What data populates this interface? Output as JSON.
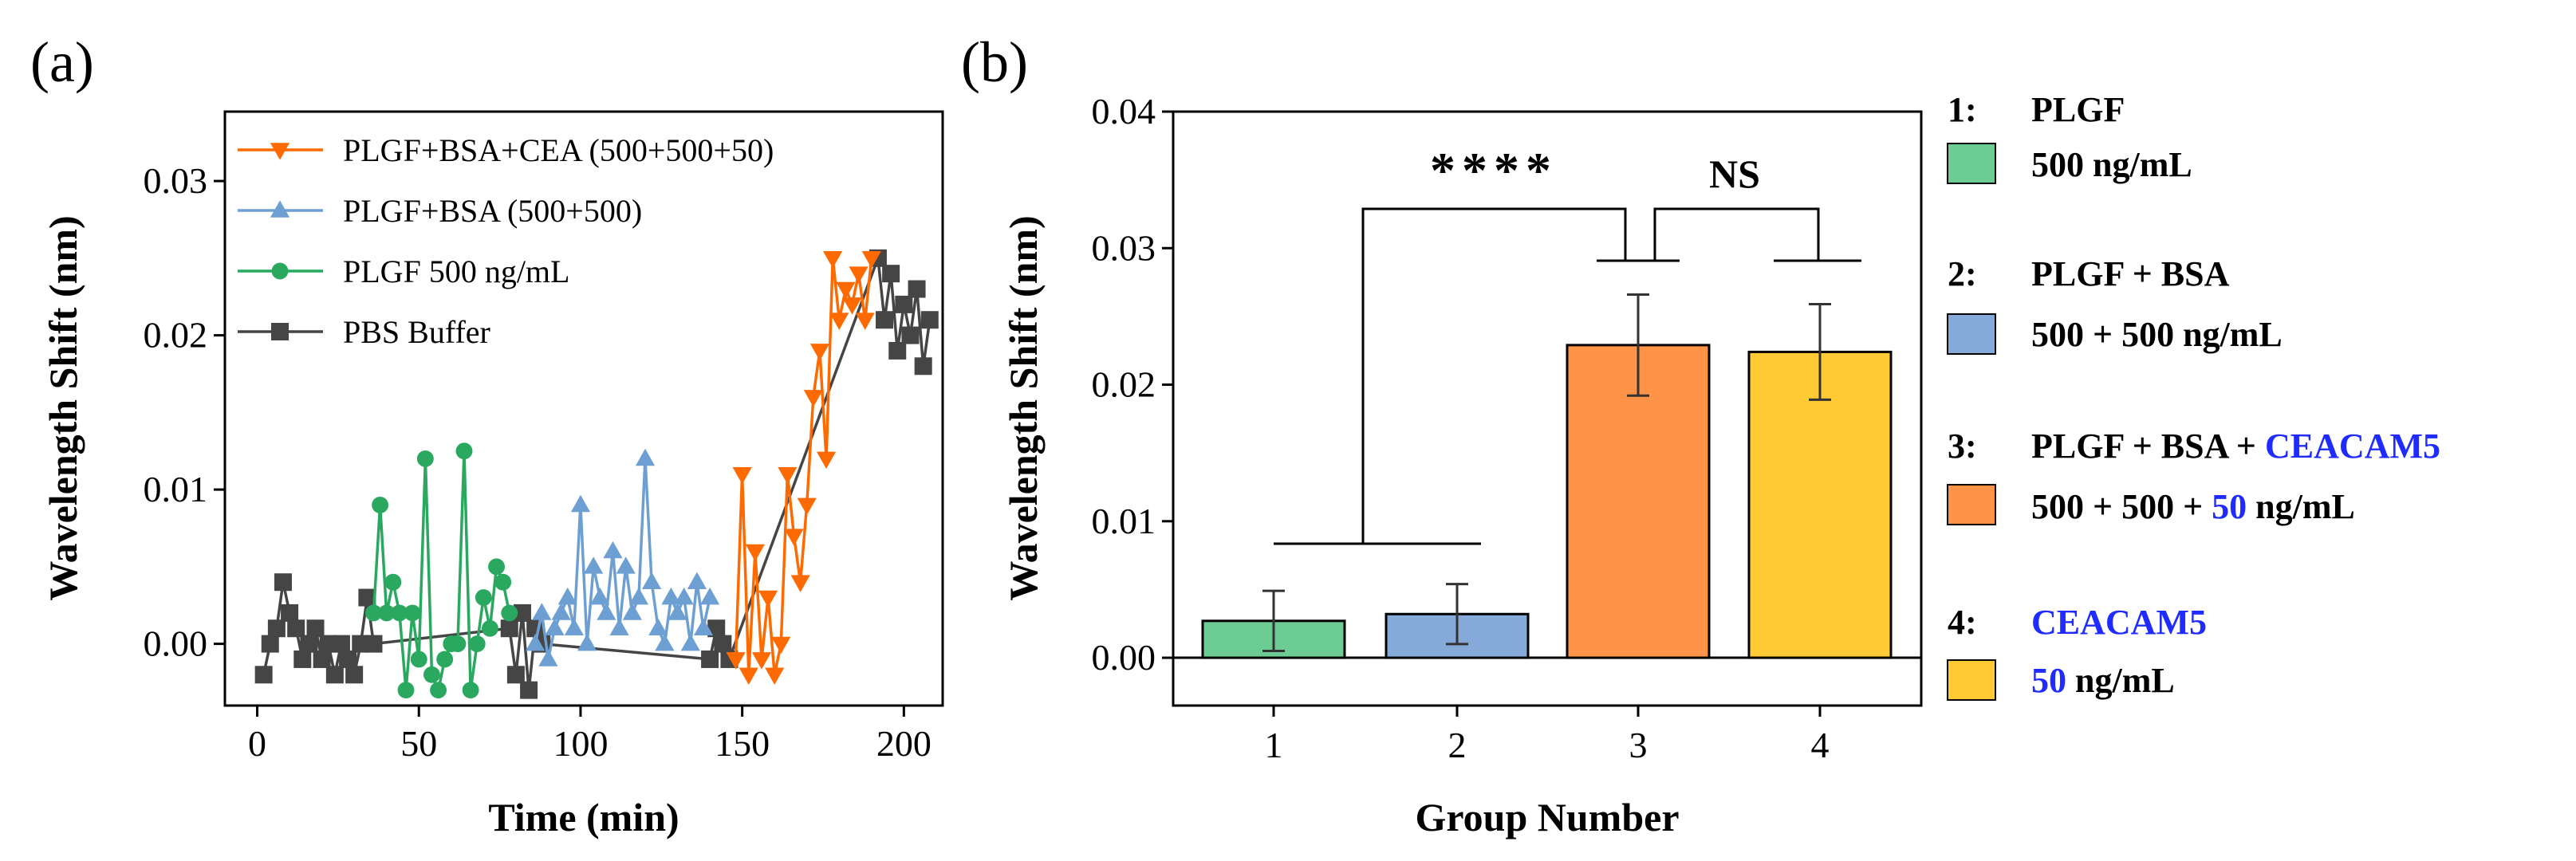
{
  "panels": {
    "a": "(a)",
    "b": "(b)"
  },
  "colors": {
    "orange": "#ff6a00",
    "blue": "#6d9fd2",
    "green": "#2aa860",
    "gray": "#454545",
    "highlight": "#1f2bff"
  },
  "chart_data": [
    {
      "type": "line",
      "panel": "(a)",
      "xlabel": "Time (min)",
      "ylabel": "Wavelength Shift (nm)",
      "xlim": [
        -10,
        212
      ],
      "ylim": [
        -0.004,
        0.0345
      ],
      "xticks": [
        "0",
        "50",
        "100",
        "150",
        "200"
      ],
      "xtick_values": [
        0,
        50,
        100,
        150,
        200
      ],
      "yticks": [
        "0.00",
        "0.01",
        "0.02",
        "0.03"
      ],
      "ytick_values": [
        0,
        0.01,
        0.02,
        0.03
      ],
      "legend_position": "top-left",
      "series": [
        {
          "name": "PLGF+BSA+CEA (500+500+50)",
          "color": "#ff6a00",
          "marker": "triangle-down",
          "x": [
            148,
            150,
            152,
            154,
            156,
            158,
            160,
            162,
            164,
            166,
            168,
            170,
            172,
            174,
            176,
            178,
            180,
            182,
            184,
            186,
            188,
            190
          ],
          "y": [
            -0.001,
            0.011,
            -0.002,
            0.006,
            -0.001,
            0.003,
            -0.002,
            0.0,
            0.011,
            0.007,
            0.004,
            0.009,
            0.016,
            0.019,
            0.012,
            0.025,
            0.021,
            0.023,
            0.022,
            0.024,
            0.021,
            0.025
          ]
        },
        {
          "name": "PLGF+BSA (500+500)",
          "color": "#6d9fd2",
          "marker": "triangle-up",
          "x": [
            86,
            88,
            90,
            92,
            94,
            96,
            98,
            100,
            102,
            104,
            106,
            108,
            110,
            112,
            114,
            116,
            118,
            120,
            122,
            124,
            126,
            128,
            130,
            132,
            134,
            136,
            138,
            140
          ],
          "y": [
            0.0,
            0.002,
            -0.001,
            0.001,
            0.002,
            0.003,
            0.001,
            0.009,
            0.0,
            0.005,
            0.003,
            0.002,
            0.006,
            0.001,
            0.005,
            0.002,
            0.003,
            0.012,
            0.004,
            0.001,
            0.0,
            0.003,
            0.002,
            0.003,
            0.0,
            0.004,
            0.001,
            0.003
          ]
        },
        {
          "name": "PLGF 500 ng/mL",
          "color": "#2aa860",
          "marker": "circle",
          "x": [
            36,
            38,
            40,
            42,
            44,
            46,
            48,
            50,
            52,
            54,
            56,
            58,
            60,
            62,
            64,
            66,
            68,
            70,
            72,
            74,
            76,
            78
          ],
          "y": [
            0.002,
            0.009,
            0.002,
            0.004,
            0.002,
            -0.003,
            0.002,
            -0.001,
            0.012,
            -0.002,
            -0.003,
            -0.001,
            0.0,
            0.0,
            0.0125,
            -0.003,
            0.0,
            0.003,
            0.001,
            0.005,
            0.004,
            0.002
          ]
        },
        {
          "name": "PBS Buffer",
          "color": "#454545",
          "marker": "square",
          "x": [
            2,
            4,
            6,
            8,
            10,
            12,
            14,
            16,
            18,
            20,
            22,
            24,
            26,
            28,
            30,
            32,
            34,
            36,
            78,
            80,
            82,
            84,
            86,
            88,
            140,
            142,
            144,
            146,
            192,
            194,
            196,
            198,
            200,
            202,
            204,
            206,
            208
          ],
          "y": [
            -0.002,
            0.0,
            0.001,
            0.004,
            0.002,
            0.001,
            -0.001,
            0.0,
            0.001,
            -0.001,
            0.0,
            -0.002,
            0.0,
            -0.001,
            -0.002,
            0.0,
            0.003,
            0.0,
            0.001,
            -0.002,
            0.002,
            -0.003,
            0.001,
            0.0,
            -0.001,
            0.001,
            0.0,
            -0.001,
            0.025,
            0.021,
            0.024,
            0.019,
            0.022,
            0.02,
            0.023,
            0.018,
            0.021
          ]
        }
      ]
    },
    {
      "type": "bar",
      "panel": "(b)",
      "xlabel": "Group Number",
      "ylabel": "Wavelength Shift (nm)",
      "categories": [
        "1",
        "2",
        "3",
        "4"
      ],
      "values": [
        0.0027,
        0.0032,
        0.0229,
        0.0224
      ],
      "errors": [
        0.0022,
        0.0022,
        0.0037,
        0.0035
      ],
      "bar_colors": [
        "#6ccc94",
        "#85aad9",
        "#ff9347",
        "#ffca33"
      ],
      "ylim": [
        -0.0035,
        0.04
      ],
      "yticks": [
        "0.00",
        "0.01",
        "0.02",
        "0.03",
        "0.04"
      ],
      "ytick_values": [
        0,
        0.01,
        0.02,
        0.03,
        0.04
      ],
      "annotations": [
        {
          "text": "****",
          "from": "groups 1-2",
          "to": "group 3"
        },
        {
          "text": "NS",
          "from": "group 3",
          "to": "group 4"
        }
      ]
    }
  ],
  "key": {
    "items": [
      {
        "num": "1:",
        "name_plain": "PLGF",
        "name_blue": "",
        "conc_blue_lead": "",
        "conc_plain": "500 ng/mL",
        "conc_blue_mid": "",
        "conc_tail": "",
        "swatch": "#6ccc94"
      },
      {
        "num": "2:",
        "name_plain": "PLGF + BSA",
        "name_blue": "",
        "conc_blue_lead": "",
        "conc_plain": "500 + 500 ng/mL",
        "conc_blue_mid": "",
        "conc_tail": "",
        "swatch": "#85aad9"
      },
      {
        "num": "3:",
        "name_plain": "PLGF + BSA + ",
        "name_blue": "CEACAM5",
        "conc_blue_lead": "",
        "conc_plain": "500 + 500 + ",
        "conc_blue_mid": "50",
        "conc_tail": " ng/mL",
        "swatch": "#ff9347"
      },
      {
        "num": "4:",
        "name_plain": "",
        "name_blue": "CEACAM5",
        "conc_blue_lead": "50",
        "conc_plain": "",
        "conc_blue_mid": "",
        "conc_tail": " ng/mL",
        "swatch": "#ffca33"
      }
    ]
  }
}
